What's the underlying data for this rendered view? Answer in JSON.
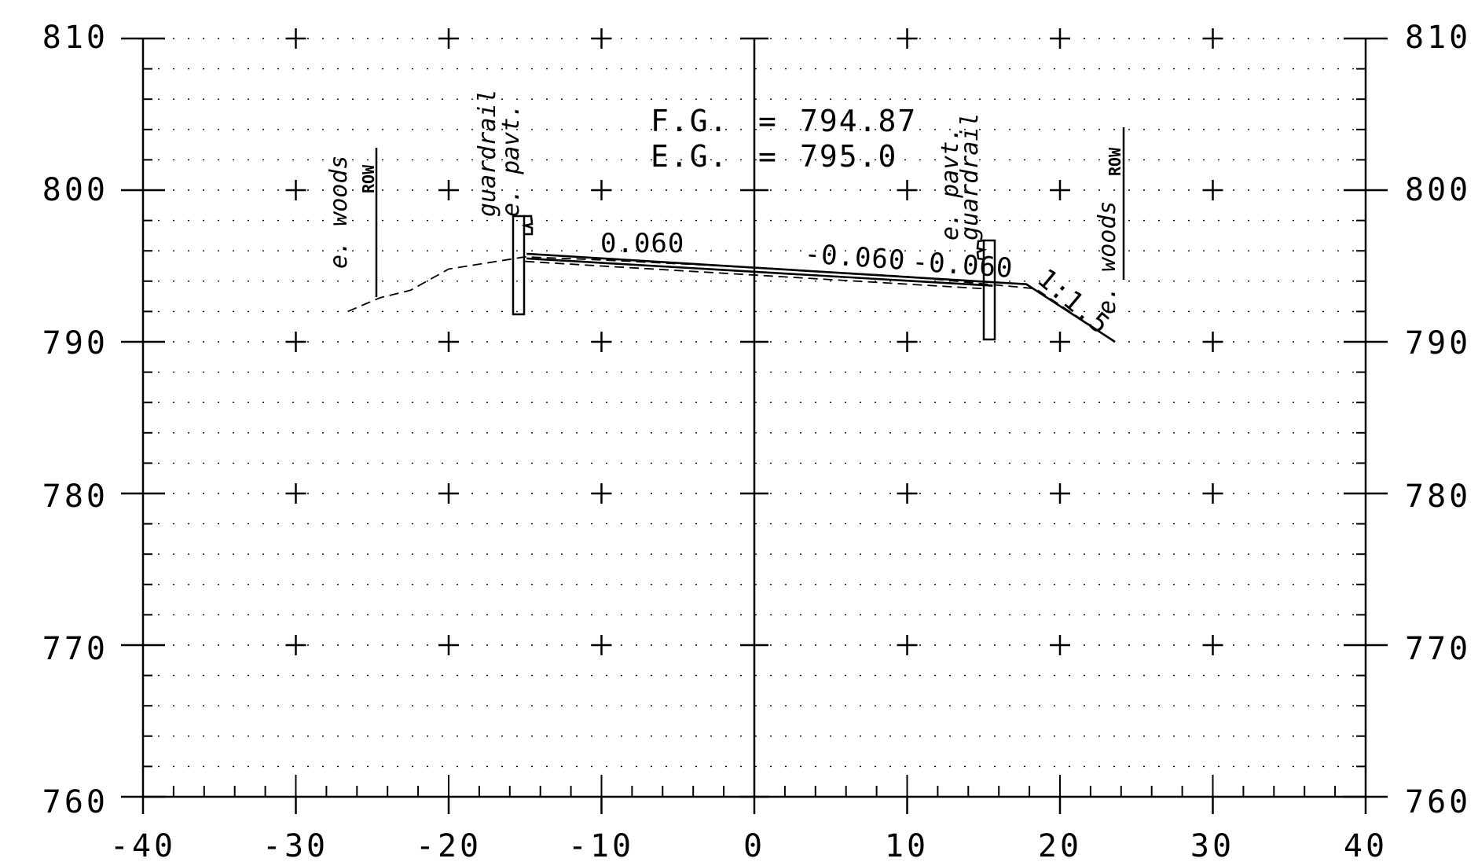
{
  "x_axis": {
    "ticks": [
      "-40",
      "-30",
      "-20",
      "-10",
      "0",
      "10",
      "20",
      "30",
      "40"
    ]
  },
  "y_axis": {
    "ticks": [
      "760",
      "770",
      "780",
      "790",
      "800",
      "810"
    ]
  },
  "header": {
    "fg_label": "F.G.",
    "fg_eq": "=",
    "fg_value": "794.87",
    "eg_label": "E.G.",
    "eg_eq": "=",
    "eg_value": "795.0"
  },
  "annotations": {
    "left_woods": "e. woods",
    "left_row": "ROW",
    "left_guardrail": "guardrail",
    "left_pavt": "e. pavt.",
    "right_pavt": "e. pavt.",
    "right_guardrail": "guardrail",
    "right_woods": "e. woods",
    "right_row": "ROW"
  },
  "slopes": {
    "left": "0.060",
    "mid": "-0.060",
    "right": "-0.060",
    "side": "1:1.5"
  },
  "colors": {
    "ink": "#000000",
    "grid": "#000000"
  },
  "chart_data": {
    "type": "line",
    "xlim": [
      -40,
      40
    ],
    "ylim": [
      760,
      810
    ],
    "grid": true,
    "series": [
      {
        "style": "solid",
        "x": [
          -14.9,
          -14.8,
          17.8,
          23.6
        ],
        "y": [
          795.8,
          795.8,
          793.8,
          790.0
        ]
      },
      {
        "style": "solid",
        "x": [
          -14.9,
          15.6
        ],
        "y": [
          795.5,
          793.7
        ]
      },
      {
        "style": "dashed",
        "x": [
          -26.6,
          -24.5,
          -22.5,
          -20.0,
          -15.0,
          -10.0,
          0.0,
          10.0,
          18.4,
          23.6
        ],
        "y": [
          792.0,
          792.9,
          793.4,
          794.8,
          795.6,
          795.4,
          794.9,
          794.3,
          793.5,
          790.0
        ]
      },
      {
        "style": "dashed",
        "x": [
          -15.0,
          15.0
        ],
        "y": [
          795.3,
          793.5
        ]
      }
    ]
  }
}
